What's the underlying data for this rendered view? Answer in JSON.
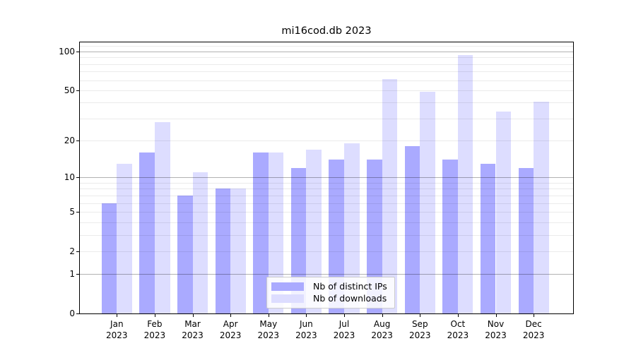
{
  "window": {
    "title": "mi16cod.db 2023"
  },
  "chart_data": {
    "type": "bar",
    "title": "mi16cod.db 2023",
    "categories": [
      "Jan",
      "Feb",
      "Mar",
      "Apr",
      "May",
      "Jun",
      "Jul",
      "Aug",
      "Sep",
      "Oct",
      "Nov",
      "Dec"
    ],
    "category_year_line": "2023",
    "series": [
      {
        "name": "Nb of distinct IPs",
        "color": "#aaaaff",
        "values": [
          6,
          16,
          7,
          8,
          16,
          12,
          14,
          14,
          18,
          14,
          13,
          12
        ]
      },
      {
        "name": "Nb of downloads",
        "color": "#ddddff",
        "values": [
          13,
          28,
          11,
          8,
          16,
          17,
          19,
          61,
          49,
          94,
          34,
          41
        ]
      }
    ],
    "yscale": "log1p",
    "ylim": [
      0,
      118
    ],
    "yticks": [
      100,
      50,
      20,
      10,
      5,
      2,
      1,
      0
    ],
    "ytick_labels": [
      "100",
      "50",
      "20",
      "10",
      "5",
      "2",
      "1",
      "0"
    ],
    "major_gridlines": [
      1,
      10,
      100
    ],
    "minor_gridlines": [
      2,
      3,
      4,
      5,
      6,
      7,
      8,
      9,
      20,
      30,
      40,
      50,
      60,
      70,
      80,
      90,
      110
    ],
    "grid": true,
    "legend_position": "lower center",
    "xlabel": "",
    "ylabel": ""
  },
  "colors": {
    "background": "#ffffff",
    "spine": "#000000",
    "major_grid": "#b3b3b3",
    "minor_grid": "#ececec",
    "legend_border": "#cccccc"
  }
}
